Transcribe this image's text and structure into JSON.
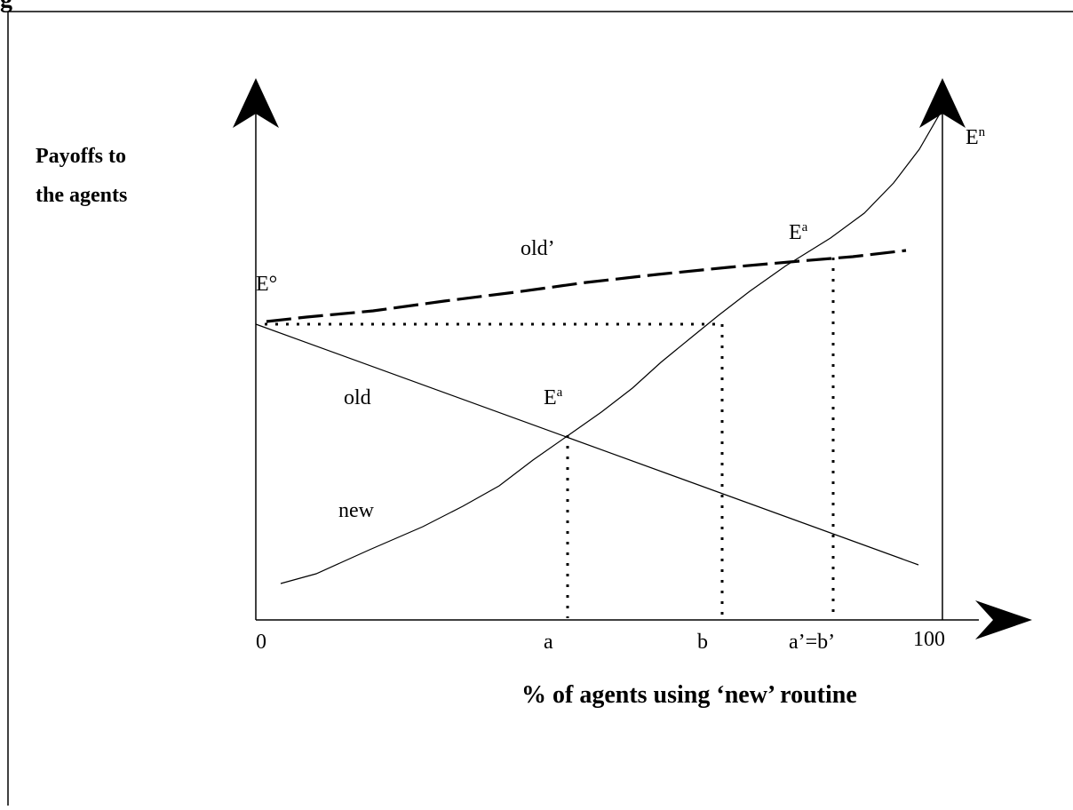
{
  "figure": {
    "cut_title_fragment": "g",
    "y_axis_label_line1": "Payoffs to",
    "y_axis_label_line2": "the agents",
    "x_axis_title": "% of agents using ‘new’ routine",
    "x_ticks": {
      "zero": "0",
      "a": "a",
      "b": "b",
      "a_prime_b_prime": "a’=b’",
      "hundred": "100"
    },
    "curve_labels": {
      "old": "old",
      "old_prime": "old’",
      "new": "new"
    },
    "points": {
      "e_zero": "E°",
      "e_a_lower": {
        "base": "E",
        "sup": "a"
      },
      "e_a_upper": {
        "base": "E",
        "sup": "a"
      },
      "e_n": {
        "base": "E",
        "sup": "n"
      }
    }
  },
  "colors": {
    "ink": "#000000",
    "background": "#ffffff"
  }
}
